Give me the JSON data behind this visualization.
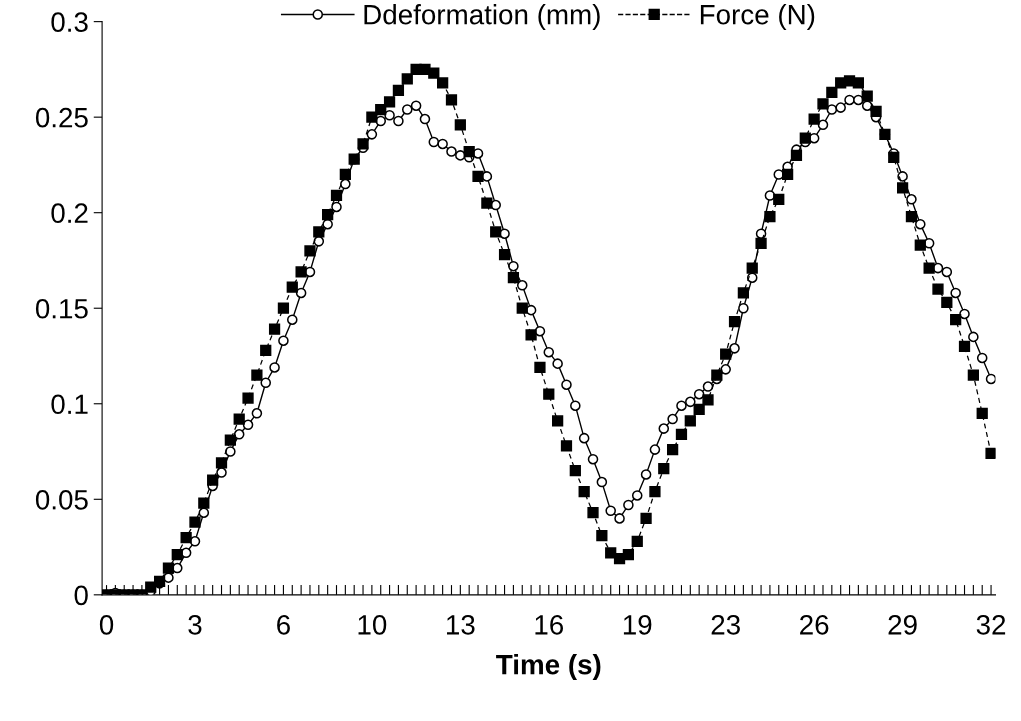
{
  "chart_data": {
    "type": "line",
    "xlabel": "Time (s)",
    "categories": [
      "0",
      null,
      null,
      null,
      null,
      null,
      null,
      null,
      null,
      null,
      "3",
      null,
      null,
      null,
      null,
      null,
      null,
      null,
      null,
      null,
      "6",
      null,
      null,
      null,
      null,
      null,
      null,
      null,
      null,
      null,
      "10",
      null,
      null,
      null,
      null,
      null,
      null,
      null,
      null,
      null,
      "13",
      null,
      null,
      null,
      null,
      null,
      null,
      null,
      null,
      null,
      "16",
      null,
      null,
      null,
      null,
      null,
      null,
      null,
      null,
      null,
      "19",
      null,
      null,
      null,
      null,
      null,
      null,
      null,
      null,
      null,
      "23",
      null,
      null,
      null,
      null,
      null,
      null,
      null,
      null,
      null,
      "26",
      null,
      null,
      null,
      null,
      null,
      null,
      null,
      null,
      null,
      "29",
      null,
      null,
      null,
      null,
      null,
      null,
      null,
      null,
      null,
      "32"
    ],
    "series": [
      {
        "name": "Ddeformation (mm)",
        "color": "#000000",
        "marker": "circle",
        "line_style": "solid",
        "values": [
          0,
          0.001,
          0,
          0,
          0,
          0.002,
          0.006,
          0.009,
          0.014,
          0.022,
          0.028,
          0.043,
          0.057,
          0.064,
          0.075,
          0.084,
          0.089,
          0.095,
          0.111,
          0.119,
          0.133,
          0.144,
          0.158,
          0.169,
          0.185,
          0.194,
          0.203,
          0.215,
          0.228,
          0.234,
          0.241,
          0.248,
          0.251,
          0.248,
          0.254,
          0.256,
          0.249,
          0.237,
          0.236,
          0.232,
          0.23,
          0.229,
          0.231,
          0.219,
          0.204,
          0.189,
          0.172,
          0.162,
          0.149,
          0.138,
          0.127,
          0.121,
          0.11,
          0.099,
          0.082,
          0.071,
          0.059,
          0.044,
          0.04,
          0.047,
          0.052,
          0.063,
          0.076,
          0.087,
          0.092,
          0.099,
          0.101,
          0.105,
          0.109,
          0.113,
          0.118,
          0.129,
          0.15,
          0.166,
          0.189,
          0.209,
          0.22,
          0.224,
          0.233,
          0.237,
          0.239,
          0.246,
          0.254,
          0.255,
          0.259,
          0.259,
          0.256,
          0.25,
          0.241,
          0.231,
          0.219,
          0.207,
          0.194,
          0.184,
          0.171,
          0.169,
          0.158,
          0.147,
          0.135,
          0.124,
          0.113
        ]
      },
      {
        "name": "Force (N)",
        "color": "#000000",
        "marker": "square",
        "line_style": "dashed",
        "values": [
          0,
          0,
          0,
          0,
          0,
          0.004,
          0.007,
          0.014,
          0.021,
          0.03,
          0.038,
          0.048,
          0.06,
          0.069,
          0.081,
          0.092,
          0.103,
          0.115,
          0.128,
          0.139,
          0.15,
          0.161,
          0.169,
          0.18,
          0.19,
          0.199,
          0.209,
          0.22,
          0.228,
          0.236,
          0.25,
          0.254,
          0.258,
          0.264,
          0.27,
          0.275,
          0.275,
          0.273,
          0.268,
          0.259,
          0.246,
          0.232,
          0.219,
          0.205,
          0.19,
          0.178,
          0.166,
          0.15,
          0.136,
          0.119,
          0.105,
          0.091,
          0.078,
          0.065,
          0.054,
          0.043,
          0.031,
          0.022,
          0.019,
          0.021,
          0.028,
          0.04,
          0.054,
          0.066,
          0.076,
          0.084,
          0.091,
          0.097,
          0.102,
          0.115,
          0.126,
          0.143,
          0.158,
          0.171,
          0.184,
          0.198,
          0.207,
          0.22,
          0.23,
          0.239,
          0.249,
          0.257,
          0.263,
          0.268,
          0.269,
          0.268,
          0.261,
          0.253,
          0.241,
          0.229,
          0.213,
          0.198,
          0.183,
          0.171,
          0.16,
          0.153,
          0.144,
          0.13,
          0.115,
          0.095,
          0.074
        ]
      }
    ],
    "ylim": [
      0,
      0.3
    ],
    "yticks": [
      0,
      0.05,
      0.1,
      0.15,
      0.2,
      0.25,
      0.3
    ],
    "grid": false,
    "legend": "top"
  }
}
